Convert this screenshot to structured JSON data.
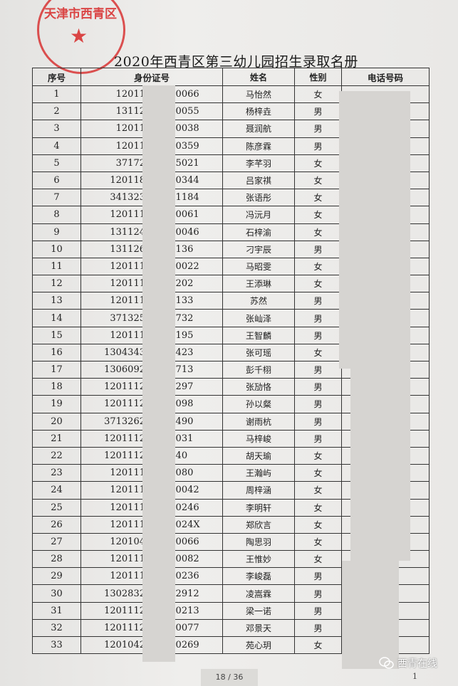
{
  "title": "2020年西青区第三幼儿园招生录取名册",
  "stamp_text": "天津市西青区",
  "headers": [
    "序号",
    "身份证号",
    "姓名",
    "性别",
    "电话号码"
  ],
  "rows": [
    [
      "1",
      "12011",
      "200066",
      "马怡然",
      "女"
    ],
    [
      "2",
      "13112",
      "230055",
      "杨梓垚",
      "男"
    ],
    [
      "3",
      "12011",
      "010038",
      "聂润航",
      "男"
    ],
    [
      "4",
      "12011",
      "260359",
      "陈彦霖",
      "男"
    ],
    [
      "5",
      "37172",
      "215021",
      "李芊羽",
      "女"
    ],
    [
      "6",
      "120118",
      "180344",
      "吕家祺",
      "女"
    ],
    [
      "7",
      "341323",
      "051184",
      "张语彤",
      "女"
    ],
    [
      "8",
      "120111",
      "220061",
      "冯沅月",
      "女"
    ],
    [
      "9",
      "131124",
      "080046",
      "石梓渝",
      "女"
    ],
    [
      "10",
      "131126",
      "60136",
      "刁宇辰",
      "男"
    ],
    [
      "11",
      "120111",
      "010022",
      "马昭雯",
      "女"
    ],
    [
      "12",
      "120111",
      "30202",
      "王添琳",
      "女"
    ],
    [
      "13",
      "120111",
      "60133",
      "苏然",
      "男"
    ],
    [
      "14",
      "371325",
      "32732",
      "张屾泽",
      "男"
    ],
    [
      "15",
      "120111",
      "20195",
      "王智麟",
      "男"
    ],
    [
      "16",
      "1304343",
      "52423",
      "张可瑶",
      "女"
    ],
    [
      "17",
      "1306092",
      "43713",
      "彭千栩",
      "男"
    ],
    [
      "18",
      "1201112",
      "10297",
      "张劢恪",
      "男"
    ],
    [
      "19",
      "1201112",
      "00098",
      "孙以粲",
      "男"
    ],
    [
      "20",
      "3713262",
      "30490",
      "谢雨杭",
      "男"
    ],
    [
      "21",
      "1201112",
      "00031",
      "马梓峻",
      "男"
    ],
    [
      "22",
      "1201112",
      "0040",
      "胡天瑜",
      "女"
    ],
    [
      "23",
      "120111",
      "10080",
      "王瀚屿",
      "女"
    ],
    [
      "24",
      "120111",
      "210042",
      "周梓涵",
      "女"
    ],
    [
      "25",
      "120111",
      "280246",
      "李明轩",
      "女"
    ],
    [
      "26",
      "120111",
      "28024X",
      "郑欣言",
      "女"
    ],
    [
      "27",
      "120104",
      "250066",
      "陶思羽",
      "女"
    ],
    [
      "28",
      "120111",
      "070082",
      "王惟妙",
      "女"
    ],
    [
      "29",
      "120111",
      "030236",
      "李峻磊",
      "男"
    ],
    [
      "30",
      "1302832",
      "112912",
      "凌嵩霖",
      "男"
    ],
    [
      "31",
      "1201112",
      "180213",
      "梁一诺",
      "男"
    ],
    [
      "32",
      "1201112",
      "220077",
      "邓景天",
      "男"
    ],
    [
      "33",
      "1201042",
      "200269",
      "苑心玥",
      "女"
    ]
  ],
  "pager": "18 / 36",
  "page_number": "1",
  "watermark": "西青在线",
  "watermark_icon": "wechat-icon",
  "stamp_color": "#d72828"
}
